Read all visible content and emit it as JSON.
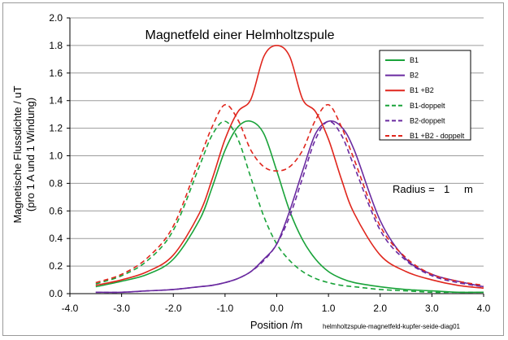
{
  "chart_data": {
    "type": "line",
    "title": "Magnetfeld einer Helmholtzspule",
    "xlabel": "Position  /m",
    "ylabel_line1": "Magnetische Flussdichte / uT",
    "ylabel_line2": "(pro 1 A und 1 Windung)",
    "xlim": [
      -4.0,
      4.0
    ],
    "ylim": [
      0.0,
      2.0
    ],
    "x_ticks": [
      "-4.0",
      "-3.0",
      "-2.0",
      "-1.0",
      "0.0",
      "1.0",
      "2.0",
      "3.0",
      "4.0"
    ],
    "y_ticks": [
      "0.0",
      "0.2",
      "0.4",
      "0.6",
      "0.8",
      "1.0",
      "1.2",
      "1.4",
      "1.6",
      "1.8",
      "2.0"
    ],
    "grid": "horizontal",
    "legend_placement": "top-right",
    "annotation": {
      "label": "Radius =",
      "value": "1",
      "unit": "m"
    },
    "footnote": "helmholtzspule-magnetfeld-kupfer-seide-diag01",
    "x": [
      -3.5,
      -3.0,
      -2.5,
      -2.0,
      -1.5,
      -1.25,
      -1.0,
      -0.75,
      -0.5,
      -0.25,
      0.0,
      0.25,
      0.5,
      0.75,
      1.0,
      1.25,
      1.5,
      2.0,
      2.5,
      3.0,
      3.5,
      4.0
    ],
    "series": [
      {
        "name": "B1",
        "color": "#1aa33a",
        "dash": "solid",
        "values": [
          0.05,
          0.09,
          0.14,
          0.25,
          0.53,
          0.77,
          1.04,
          1.21,
          1.25,
          1.16,
          0.89,
          0.6,
          0.39,
          0.25,
          0.16,
          0.11,
          0.08,
          0.05,
          0.03,
          0.02,
          0.01,
          0.01
        ]
      },
      {
        "name": "B2",
        "color": "#6a2aa0",
        "dash": "solid",
        "values": [
          0.01,
          0.01,
          0.02,
          0.03,
          0.05,
          0.06,
          0.08,
          0.11,
          0.16,
          0.25,
          0.36,
          0.6,
          0.89,
          1.16,
          1.25,
          1.21,
          1.04,
          0.53,
          0.25,
          0.14,
          0.09,
          0.05
        ]
      },
      {
        "name": "B1 +B2",
        "color": "#e0261d",
        "dash": "solid",
        "values": [
          0.06,
          0.1,
          0.16,
          0.28,
          0.58,
          0.83,
          1.12,
          1.32,
          1.41,
          1.72,
          1.8,
          1.72,
          1.41,
          1.32,
          1.12,
          0.83,
          0.58,
          0.28,
          0.16,
          0.1,
          0.06,
          0.04
        ]
      },
      {
        "name": "B1-doppelt",
        "color": "#1aa33a",
        "dash": "dashed",
        "values": [
          0.07,
          0.13,
          0.24,
          0.46,
          0.92,
          1.15,
          1.25,
          1.12,
          0.84,
          0.56,
          0.36,
          0.24,
          0.16,
          0.11,
          0.08,
          0.06,
          0.05,
          0.03,
          0.02,
          0.01,
          0.01,
          0.01
        ]
      },
      {
        "name": "B2-doppelt",
        "color": "#6a2aa0",
        "dash": "dashed",
        "values": [
          0.01,
          0.01,
          0.02,
          0.03,
          0.05,
          0.06,
          0.08,
          0.11,
          0.16,
          0.24,
          0.36,
          0.56,
          0.84,
          1.12,
          1.25,
          1.15,
          0.92,
          0.46,
          0.24,
          0.13,
          0.08,
          0.05
        ]
      },
      {
        "name": "B1 +B2 - doppelt",
        "color": "#e0261d",
        "dash": "dashed",
        "values": [
          0.08,
          0.14,
          0.26,
          0.49,
          0.97,
          1.21,
          1.37,
          1.26,
          1.04,
          0.92,
          0.89,
          0.92,
          1.04,
          1.26,
          1.37,
          1.21,
          0.97,
          0.49,
          0.26,
          0.14,
          0.09,
          0.06
        ]
      }
    ]
  }
}
